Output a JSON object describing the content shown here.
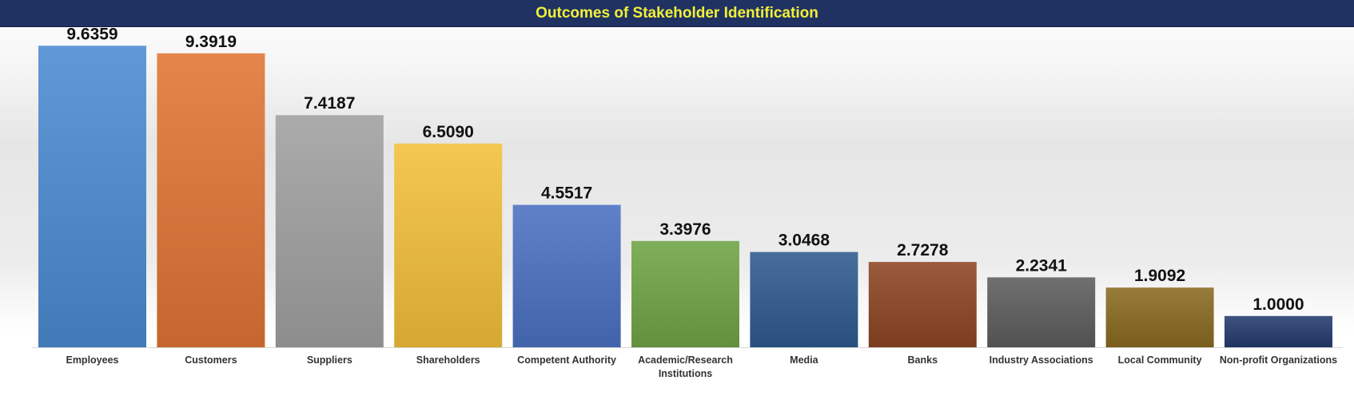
{
  "chart_data": {
    "type": "bar",
    "title": "Outcomes of Stakeholder Identification",
    "categories": [
      "Employees",
      "Customers",
      "Suppliers",
      "Shareholders",
      "Competent Authority",
      "Academic/Research Institutions",
      "Media",
      "Banks",
      "Industry Associations",
      "Local Community",
      "Non-profit Organizations"
    ],
    "values": [
      9.6359,
      9.3919,
      7.4187,
      6.509,
      4.5517,
      3.3976,
      3.0468,
      2.7278,
      2.2341,
      1.9092,
      1.0
    ],
    "value_labels": [
      "9.6359",
      "9.3919",
      "7.4187",
      "6.5090",
      "4.5517",
      "3.3976",
      "3.0468",
      "2.7278",
      "2.2341",
      "1.9092",
      "1.0000"
    ],
    "colors": [
      "#4a8bd0",
      "#e07434",
      "#a0a0a0",
      "#f3bf3a",
      "#4a70c0",
      "#6fa444",
      "#2e5a8e",
      "#8c4522",
      "#5c5c5c",
      "#8a6a20",
      "#243a6e"
    ],
    "xlabel": "",
    "ylabel": "",
    "ylim": [
      0,
      10
    ],
    "grid": false,
    "legend": "none"
  }
}
